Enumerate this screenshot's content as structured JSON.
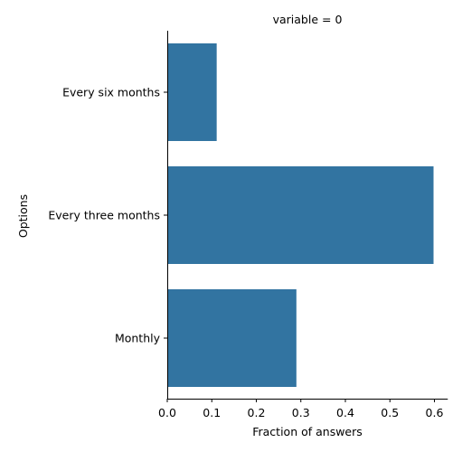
{
  "chart_data": {
    "type": "bar",
    "orientation": "horizontal",
    "title": "variable = 0",
    "xlabel": "Fraction of answers",
    "ylabel": "Options",
    "categories": [
      "Every six months",
      "Every three months",
      "Monthly"
    ],
    "values": [
      0.111,
      0.598,
      0.29
    ],
    "xlim": [
      0,
      0.63
    ],
    "xticks": [
      0.0,
      0.1,
      0.2,
      0.3,
      0.4,
      0.5,
      0.6
    ],
    "xtick_labels": [
      "0.0",
      "0.1",
      "0.2",
      "0.3",
      "0.4",
      "0.5",
      "0.6"
    ],
    "grid": false,
    "bar_color": "#3274a1"
  }
}
